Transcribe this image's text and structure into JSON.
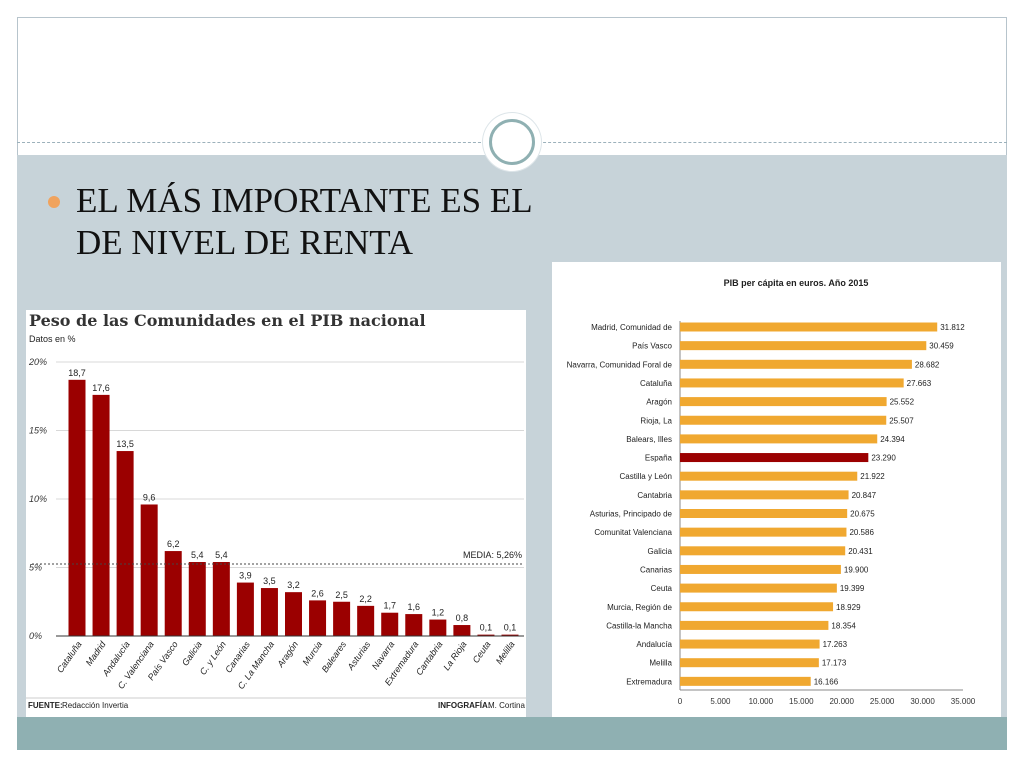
{
  "slide": {
    "bullet_text": "EL MÁS IMPORTANTE ES EL DE NIVEL DE RENTA"
  },
  "colors": {
    "bar_red": "#9b0000",
    "bar_orange": "#f0a830",
    "highlight": "#9b0000",
    "band": "#c7d3d9",
    "footer_band": "#8fb0b2",
    "bullet": "#f0a35e"
  },
  "chart_data": [
    {
      "type": "bar",
      "title": "Peso de las Comunidades en el PIB nacional",
      "subtitle": "Datos en %",
      "categories": [
        "Cataluña",
        "Madrid",
        "Andalucía",
        "C. Valenciana",
        "País Vasco",
        "Galicia",
        "C. y León",
        "Canarias",
        "C. La Mancha",
        "Aragón",
        "Murcia",
        "Baleares",
        "Asturias",
        "Navarra",
        "Extremadura",
        "Cantabria",
        "La Rioja",
        "Ceuta",
        "Melilla"
      ],
      "values": [
        18.7,
        17.6,
        13.5,
        9.6,
        6.2,
        5.4,
        5.4,
        3.9,
        3.5,
        3.2,
        2.6,
        2.5,
        2.2,
        1.7,
        1.6,
        1.2,
        0.8,
        0.1,
        0.1
      ],
      "value_labels": [
        "18,7",
        "17,6",
        "13,5",
        "9,6",
        "6,2",
        "5,4",
        "5,4",
        "3,9",
        "3,5",
        "3,2",
        "2,6",
        "2,5",
        "2,2",
        "1,7",
        "1,6",
        "1,2",
        "0,8",
        "0,1",
        "0,1"
      ],
      "y_ticks": [
        "0%",
        "5%",
        "10%",
        "15%",
        "20%"
      ],
      "ylim": [
        0,
        20
      ],
      "reference_line": {
        "value": 5.26,
        "label": "MEDIA: 5,26%"
      },
      "source_prefix": "FUENTE:",
      "source_text": "Redacción Invertia",
      "credit_prefix": "INFOGRAFÍA:",
      "credit_text": "M. Cortina"
    },
    {
      "type": "bar",
      "orientation": "horizontal",
      "title": "PIB per cápita en euros. Año 2015",
      "categories": [
        "Madrid, Comunidad de",
        "País Vasco",
        "Navarra, Comunidad Foral de",
        "Cataluña",
        "Aragón",
        "Rioja, La",
        "Balears, Illes",
        "España",
        "Castilla y León",
        "Cantabria",
        "Asturias, Principado de",
        "Comunitat Valenciana",
        "Galicia",
        "Canarias",
        "Ceuta",
        "Murcia, Región de",
        "Castilla-la Mancha",
        "Andalucía",
        "Melilla",
        "Extremadura"
      ],
      "values": [
        31812,
        30459,
        28682,
        27663,
        25552,
        25507,
        24394,
        23290,
        21922,
        20847,
        20675,
        20586,
        20431,
        19900,
        19399,
        18929,
        18354,
        17263,
        17173,
        16166
      ],
      "value_labels": [
        "31.812",
        "30.459",
        "28.682",
        "27.663",
        "25.552",
        "25.507",
        "24.394",
        "23.290",
        "21.922",
        "20.847",
        "20.675",
        "20.586",
        "20.431",
        "19.900",
        "19.399",
        "18.929",
        "18.354",
        "17.263",
        "17.173",
        "16.166"
      ],
      "highlight_category": "España",
      "x_ticks": [
        "0",
        "5.000",
        "10.000",
        "15.000",
        "20.000",
        "25.000",
        "30.000",
        "35.000"
      ],
      "xlim": [
        0,
        35000
      ]
    }
  ]
}
